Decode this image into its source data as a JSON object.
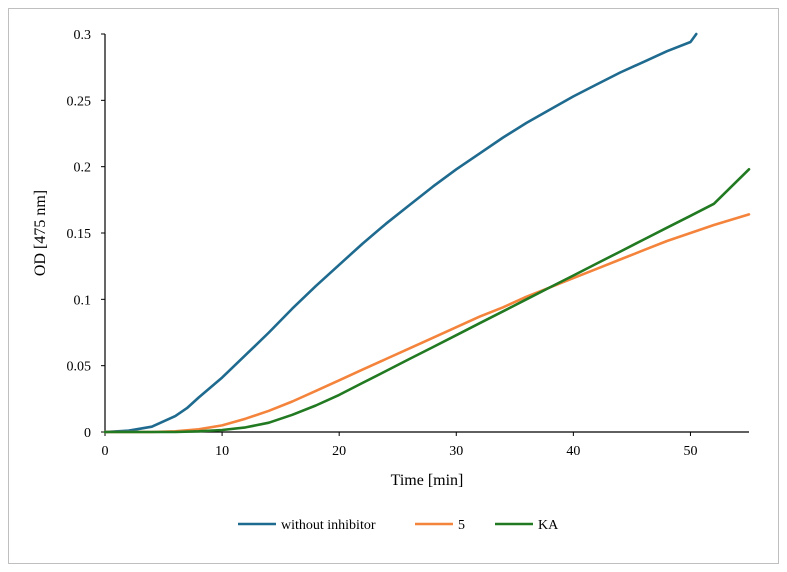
{
  "chart_data": {
    "type": "line",
    "title": "",
    "xlabel": "Time [min]",
    "ylabel": "OD [475 nm]",
    "xlim": [
      0,
      55
    ],
    "ylim": [
      0,
      0.3
    ],
    "x_ticks": [
      0,
      10,
      20,
      30,
      40,
      50
    ],
    "y_ticks": [
      0,
      0.05,
      0.1,
      0.15,
      0.2,
      0.25,
      0.3
    ],
    "y_tick_labels": [
      "0",
      "0.05",
      "0.1",
      "0.15",
      "0.2",
      "0.25",
      "0.3"
    ],
    "grid": false,
    "legend_position": "bottom",
    "series": [
      {
        "name": "without inhibitor",
        "color": "#1f6a8f",
        "points": [
          [
            0,
            0
          ],
          [
            2,
            0.001
          ],
          [
            4,
            0.004
          ],
          [
            6,
            0.012
          ],
          [
            7,
            0.018
          ],
          [
            8,
            0.026
          ],
          [
            10,
            0.041
          ],
          [
            12,
            0.058
          ],
          [
            14,
            0.075
          ],
          [
            16,
            0.093
          ],
          [
            18,
            0.11
          ],
          [
            20,
            0.126
          ],
          [
            22,
            0.142
          ],
          [
            24,
            0.157
          ],
          [
            26,
            0.171
          ],
          [
            28,
            0.185
          ],
          [
            30,
            0.198
          ],
          [
            32,
            0.21
          ],
          [
            34,
            0.222
          ],
          [
            36,
            0.233
          ],
          [
            38,
            0.243
          ],
          [
            40,
            0.253
          ],
          [
            42,
            0.262
          ],
          [
            44,
            0.271
          ],
          [
            46,
            0.279
          ],
          [
            48,
            0.287
          ],
          [
            50,
            0.294
          ],
          [
            50.5,
            0.3
          ]
        ]
      },
      {
        "name": "5",
        "color": "#f4843c",
        "points": [
          [
            0,
            0
          ],
          [
            4,
            0
          ],
          [
            6,
            0.0005
          ],
          [
            8,
            0.002
          ],
          [
            10,
            0.005
          ],
          [
            12,
            0.01
          ],
          [
            14,
            0.016
          ],
          [
            16,
            0.023
          ],
          [
            18,
            0.031
          ],
          [
            20,
            0.039
          ],
          [
            22,
            0.047
          ],
          [
            24,
            0.055
          ],
          [
            26,
            0.063
          ],
          [
            28,
            0.071
          ],
          [
            30,
            0.079
          ],
          [
            32,
            0.087
          ],
          [
            34,
            0.094
          ],
          [
            36,
            0.102
          ],
          [
            38,
            0.109
          ],
          [
            40,
            0.116
          ],
          [
            42,
            0.123
          ],
          [
            44,
            0.13
          ],
          [
            46,
            0.137
          ],
          [
            48,
            0.144
          ],
          [
            50,
            0.15
          ],
          [
            52,
            0.156
          ],
          [
            55,
            0.164
          ]
        ]
      },
      {
        "name": "KA",
        "color": "#217a21",
        "points": [
          [
            0,
            0
          ],
          [
            6,
            0
          ],
          [
            8,
            0.0005
          ],
          [
            10,
            0.0015
          ],
          [
            12,
            0.0035
          ],
          [
            14,
            0.007
          ],
          [
            16,
            0.013
          ],
          [
            18,
            0.02
          ],
          [
            20,
            0.028
          ],
          [
            22,
            0.037
          ],
          [
            24,
            0.046
          ],
          [
            26,
            0.055
          ],
          [
            28,
            0.064
          ],
          [
            30,
            0.073
          ],
          [
            32,
            0.082
          ],
          [
            34,
            0.091
          ],
          [
            36,
            0.1
          ],
          [
            38,
            0.109
          ],
          [
            40,
            0.118
          ],
          [
            42,
            0.127
          ],
          [
            44,
            0.136
          ],
          [
            46,
            0.145
          ],
          [
            48,
            0.154
          ],
          [
            50,
            0.163
          ],
          [
            52,
            0.172
          ],
          [
            55,
            0.198
          ]
        ]
      }
    ]
  }
}
